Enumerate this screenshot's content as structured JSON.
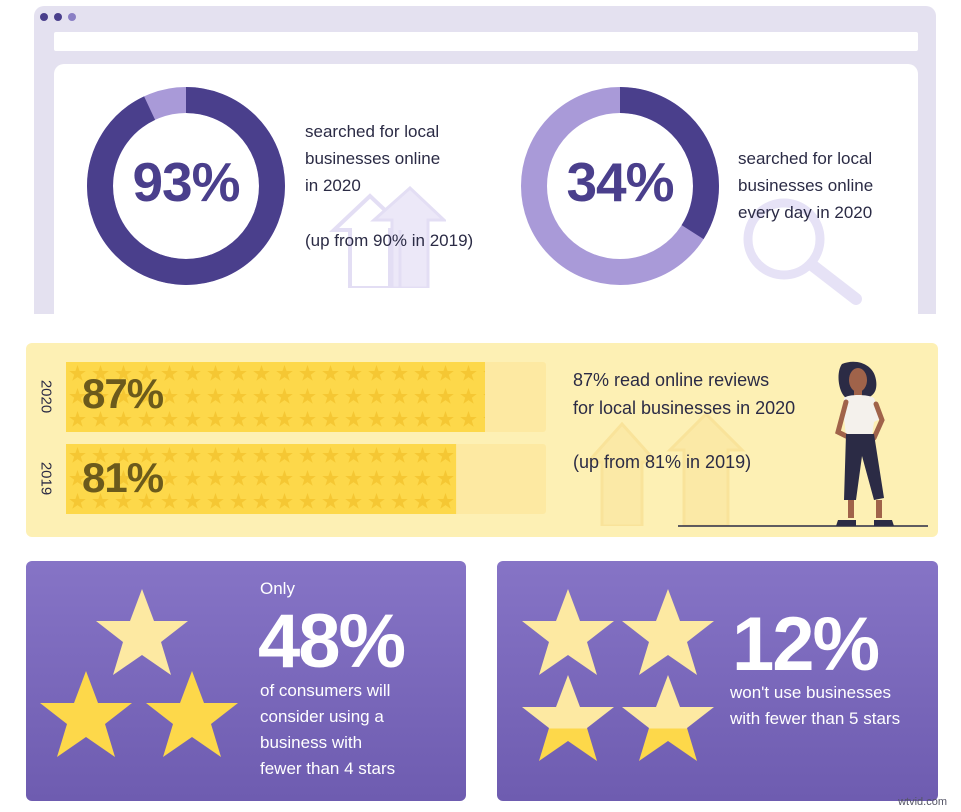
{
  "browser": {
    "dots": 3
  },
  "stat_online_2020": {
    "value": 93,
    "label": "93%",
    "lines": [
      "searched for local",
      "businesses online",
      "in 2020"
    ],
    "note": "(up from 90% in 2019)",
    "colors": {
      "ring": "#4a3f8c",
      "remainder": "#a99ad8"
    },
    "icon": "up-arrows-icon"
  },
  "stat_daily_2020": {
    "value": 34,
    "label": "34%",
    "lines": [
      "searched for local",
      "businesses online",
      "every day in 2020"
    ],
    "colors": {
      "ring": "#4a3f8c",
      "remainder": "#a99ad8"
    },
    "icon": "magnifier-icon"
  },
  "reviews": {
    "bars": [
      {
        "year": "2020",
        "value": 87,
        "label": "87%"
      },
      {
        "year": "2019",
        "value": 81,
        "label": "81%"
      }
    ],
    "lines": [
      "87% read online reviews",
      "for local businesses in 2020"
    ],
    "note": "(up from 81% in 2019)",
    "colors": {
      "band": "#fdf0b4",
      "fill": "#fdd84a",
      "track": "#fde9a2"
    },
    "icon": "woman-standing-icon"
  },
  "card_four_stars": {
    "prefix": "Only",
    "big": "48%",
    "lines": [
      "of consumers will",
      "consider using a",
      "business with",
      "fewer than 4 stars"
    ],
    "icon": "three-stars-icon"
  },
  "card_five_stars": {
    "big": "12%",
    "lines": [
      "won't use  businesses",
      "with fewer than 5 stars"
    ],
    "icon": "four-stars-icon"
  },
  "watermark": "wtvid.com"
}
